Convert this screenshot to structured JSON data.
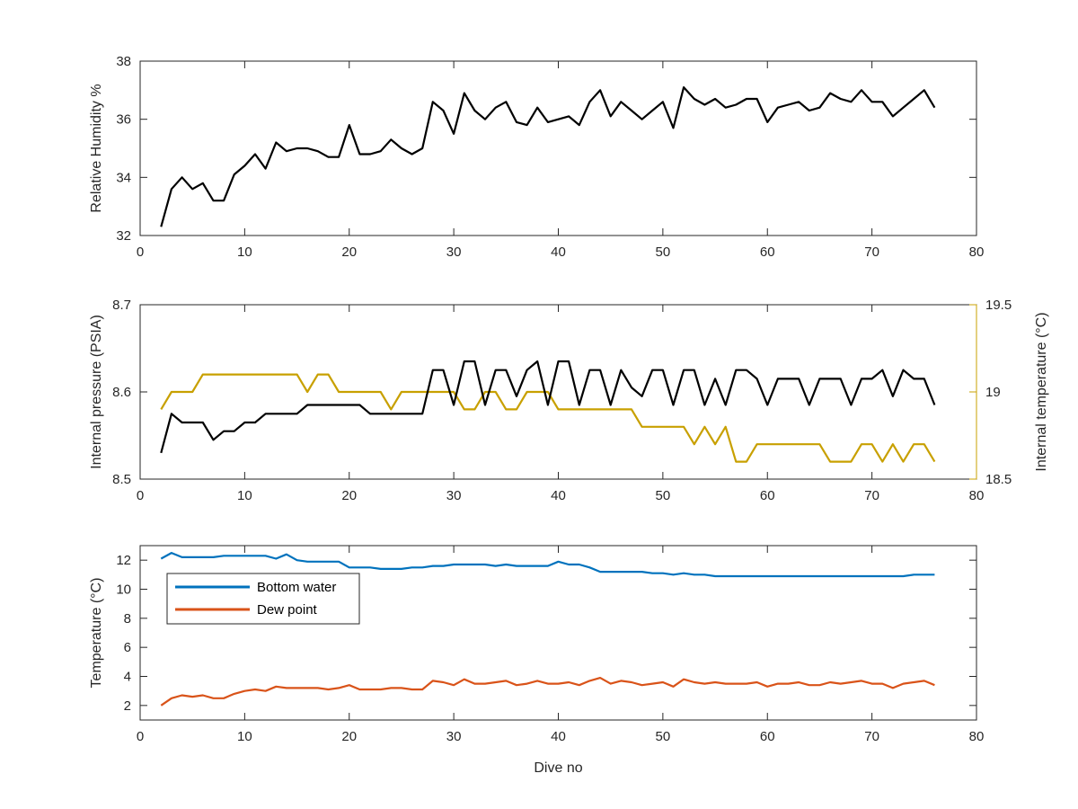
{
  "chart_data": [
    {
      "type": "line",
      "xlabel": "",
      "ylabel": "Relative Humidity %",
      "xlim": [
        0,
        80
      ],
      "ylim": [
        32,
        38
      ],
      "xticks": [
        "0",
        "10",
        "20",
        "30",
        "40",
        "50",
        "60",
        "70",
        "80"
      ],
      "yticks": [
        "32",
        "34",
        "36",
        "38"
      ],
      "grid": false,
      "series": [
        {
          "color": "#000000",
          "x": [
            2,
            3,
            4,
            5,
            6,
            7,
            8,
            9,
            10,
            11,
            12,
            13,
            14,
            15,
            16,
            17,
            18,
            19,
            20,
            21,
            22,
            23,
            24,
            25,
            26,
            27,
            28,
            29,
            30,
            31,
            32,
            33,
            34,
            35,
            36,
            37,
            38,
            39,
            40,
            41,
            42,
            43,
            44,
            45,
            46,
            47,
            48,
            49,
            50,
            51,
            52,
            53,
            54,
            55,
            56,
            57,
            58,
            59,
            60,
            61,
            62,
            63,
            64,
            65,
            66,
            67,
            68,
            69,
            70,
            71,
            72,
            73,
            74,
            75,
            76
          ],
          "values": [
            32.3,
            33.6,
            34.0,
            33.6,
            33.8,
            33.2,
            33.2,
            34.1,
            34.4,
            34.8,
            34.3,
            35.2,
            34.9,
            35.0,
            35.0,
            34.9,
            34.7,
            34.7,
            35.8,
            34.8,
            34.8,
            34.9,
            35.3,
            35.0,
            34.8,
            35.0,
            36.6,
            36.3,
            35.5,
            36.9,
            36.3,
            36.0,
            36.4,
            36.6,
            35.9,
            35.8,
            36.4,
            35.9,
            36.0,
            36.1,
            35.8,
            36.6,
            37.0,
            36.1,
            36.6,
            36.3,
            36.0,
            36.3,
            36.6,
            35.7,
            37.1,
            36.7,
            36.5,
            36.7,
            36.4,
            36.5,
            36.7,
            36.7,
            35.9,
            36.4,
            36.5,
            36.6,
            36.3,
            36.4,
            36.9,
            36.7,
            36.6,
            37.0,
            36.6,
            36.6,
            36.1,
            36.4,
            36.7,
            37.0,
            36.4
          ]
        }
      ]
    },
    {
      "type": "line",
      "xlabel": "",
      "ylabel": "Internal pressure (PSIA)",
      "y2label": "Internal temperature (°C)",
      "xlim": [
        0,
        80
      ],
      "ylim": [
        8.5,
        8.7
      ],
      "y2lim": [
        18.5,
        19.5
      ],
      "xticks": [
        "0",
        "10",
        "20",
        "30",
        "40",
        "50",
        "60",
        "70",
        "80"
      ],
      "yticks": [
        "8.5",
        "8.6",
        "8.7"
      ],
      "y2ticks": [
        "18.5",
        "19",
        "19.5"
      ],
      "grid": false,
      "series": [
        {
          "axis": "left",
          "color": "#000000",
          "x": [
            2,
            3,
            4,
            5,
            6,
            7,
            8,
            9,
            10,
            11,
            12,
            13,
            14,
            15,
            16,
            17,
            18,
            19,
            20,
            21,
            22,
            23,
            24,
            25,
            26,
            27,
            28,
            29,
            30,
            31,
            32,
            33,
            34,
            35,
            36,
            37,
            38,
            39,
            40,
            41,
            42,
            43,
            44,
            45,
            46,
            47,
            48,
            49,
            50,
            51,
            52,
            53,
            54,
            55,
            56,
            57,
            58,
            59,
            60,
            61,
            62,
            63,
            64,
            65,
            66,
            67,
            68,
            69,
            70,
            71,
            72,
            73,
            74,
            75,
            76
          ],
          "values": [
            8.53,
            8.575,
            8.565,
            8.565,
            8.565,
            8.545,
            8.555,
            8.555,
            8.565,
            8.565,
            8.575,
            8.575,
            8.575,
            8.575,
            8.585,
            8.585,
            8.585,
            8.585,
            8.585,
            8.585,
            8.575,
            8.575,
            8.575,
            8.575,
            8.575,
            8.575,
            8.625,
            8.625,
            8.585,
            8.635,
            8.635,
            8.585,
            8.625,
            8.625,
            8.595,
            8.625,
            8.635,
            8.585,
            8.635,
            8.635,
            8.585,
            8.625,
            8.625,
            8.585,
            8.625,
            8.605,
            8.595,
            8.625,
            8.625,
            8.585,
            8.625,
            8.625,
            8.585,
            8.615,
            8.585,
            8.625,
            8.625,
            8.615,
            8.585,
            8.615,
            8.615,
            8.615,
            8.585,
            8.615,
            8.615,
            8.615,
            8.585,
            8.615,
            8.615,
            8.625,
            8.595,
            8.625,
            8.615,
            8.615,
            8.585
          ]
        },
        {
          "axis": "right",
          "color": "#C8A000",
          "x": [
            2,
            3,
            4,
            5,
            6,
            7,
            8,
            9,
            10,
            11,
            12,
            13,
            14,
            15,
            16,
            17,
            18,
            19,
            20,
            21,
            22,
            23,
            24,
            25,
            26,
            27,
            28,
            29,
            30,
            31,
            32,
            33,
            34,
            35,
            36,
            37,
            38,
            39,
            40,
            41,
            42,
            43,
            44,
            45,
            46,
            47,
            48,
            49,
            50,
            51,
            52,
            53,
            54,
            55,
            56,
            57,
            58,
            59,
            60,
            61,
            62,
            63,
            64,
            65,
            66,
            67,
            68,
            69,
            70,
            71,
            72,
            73,
            74,
            75,
            76
          ],
          "values": [
            18.9,
            19.0,
            19.0,
            19.0,
            19.1,
            19.1,
            19.1,
            19.1,
            19.1,
            19.1,
            19.1,
            19.1,
            19.1,
            19.1,
            19.0,
            19.1,
            19.1,
            19.0,
            19.0,
            19.0,
            19.0,
            19.0,
            18.9,
            19.0,
            19.0,
            19.0,
            19.0,
            19.0,
            19.0,
            18.9,
            18.9,
            19.0,
            19.0,
            18.9,
            18.9,
            19.0,
            19.0,
            19.0,
            18.9,
            18.9,
            18.9,
            18.9,
            18.9,
            18.9,
            18.9,
            18.9,
            18.8,
            18.8,
            18.8,
            18.8,
            18.8,
            18.7,
            18.8,
            18.7,
            18.8,
            18.6,
            18.6,
            18.7,
            18.7,
            18.7,
            18.7,
            18.7,
            18.7,
            18.7,
            18.6,
            18.6,
            18.6,
            18.7,
            18.7,
            18.6,
            18.7,
            18.6,
            18.7,
            18.7,
            18.6
          ]
        }
      ]
    },
    {
      "type": "line",
      "xlabel": "Dive no",
      "ylabel": "Temperature (°C)",
      "xlim": [
        0,
        80
      ],
      "ylim": [
        1,
        13
      ],
      "xticks": [
        "0",
        "10",
        "20",
        "30",
        "40",
        "50",
        "60",
        "70",
        "80"
      ],
      "yticks": [
        "2",
        "4",
        "6",
        "8",
        "10",
        "12"
      ],
      "grid": false,
      "legend_position": "top-left",
      "series": [
        {
          "name": "Bottom water",
          "color": "#0072BD",
          "x": [
            2,
            3,
            4,
            5,
            6,
            7,
            8,
            9,
            10,
            11,
            12,
            13,
            14,
            15,
            16,
            17,
            18,
            19,
            20,
            21,
            22,
            23,
            24,
            25,
            26,
            27,
            28,
            29,
            30,
            31,
            32,
            33,
            34,
            35,
            36,
            37,
            38,
            39,
            40,
            41,
            42,
            43,
            44,
            45,
            46,
            47,
            48,
            49,
            50,
            51,
            52,
            53,
            54,
            55,
            56,
            57,
            58,
            59,
            60,
            61,
            62,
            63,
            64,
            65,
            66,
            67,
            68,
            69,
            70,
            71,
            72,
            73,
            74,
            75,
            76
          ],
          "values": [
            12.1,
            12.5,
            12.2,
            12.2,
            12.2,
            12.2,
            12.3,
            12.3,
            12.3,
            12.3,
            12.3,
            12.1,
            12.4,
            12.0,
            11.9,
            11.9,
            11.9,
            11.9,
            11.5,
            11.5,
            11.5,
            11.4,
            11.4,
            11.4,
            11.5,
            11.5,
            11.6,
            11.6,
            11.7,
            11.7,
            11.7,
            11.7,
            11.6,
            11.7,
            11.6,
            11.6,
            11.6,
            11.6,
            11.9,
            11.7,
            11.7,
            11.5,
            11.2,
            11.2,
            11.2,
            11.2,
            11.2,
            11.1,
            11.1,
            11.0,
            11.1,
            11.0,
            11.0,
            10.9,
            10.9,
            10.9,
            10.9,
            10.9,
            10.9,
            10.9,
            10.9,
            10.9,
            10.9,
            10.9,
            10.9,
            10.9,
            10.9,
            10.9,
            10.9,
            10.9,
            10.9,
            10.9,
            11.0,
            11.0,
            11.0
          ]
        },
        {
          "name": "Dew point",
          "color": "#D95319",
          "x": [
            2,
            3,
            4,
            5,
            6,
            7,
            8,
            9,
            10,
            11,
            12,
            13,
            14,
            15,
            16,
            17,
            18,
            19,
            20,
            21,
            22,
            23,
            24,
            25,
            26,
            27,
            28,
            29,
            30,
            31,
            32,
            33,
            34,
            35,
            36,
            37,
            38,
            39,
            40,
            41,
            42,
            43,
            44,
            45,
            46,
            47,
            48,
            49,
            50,
            51,
            52,
            53,
            54,
            55,
            56,
            57,
            58,
            59,
            60,
            61,
            62,
            63,
            64,
            65,
            66,
            67,
            68,
            69,
            70,
            71,
            72,
            73,
            74,
            75,
            76
          ],
          "values": [
            2.0,
            2.5,
            2.7,
            2.6,
            2.7,
            2.5,
            2.5,
            2.8,
            3.0,
            3.1,
            3.0,
            3.3,
            3.2,
            3.2,
            3.2,
            3.2,
            3.1,
            3.2,
            3.4,
            3.1,
            3.1,
            3.1,
            3.2,
            3.2,
            3.1,
            3.1,
            3.7,
            3.6,
            3.4,
            3.8,
            3.5,
            3.5,
            3.6,
            3.7,
            3.4,
            3.5,
            3.7,
            3.5,
            3.5,
            3.6,
            3.4,
            3.7,
            3.9,
            3.5,
            3.7,
            3.6,
            3.4,
            3.5,
            3.6,
            3.3,
            3.8,
            3.6,
            3.5,
            3.6,
            3.5,
            3.5,
            3.5,
            3.6,
            3.3,
            3.5,
            3.5,
            3.6,
            3.4,
            3.4,
            3.6,
            3.5,
            3.6,
            3.7,
            3.5,
            3.5,
            3.2,
            3.5,
            3.6,
            3.7,
            3.4
          ]
        }
      ]
    }
  ]
}
